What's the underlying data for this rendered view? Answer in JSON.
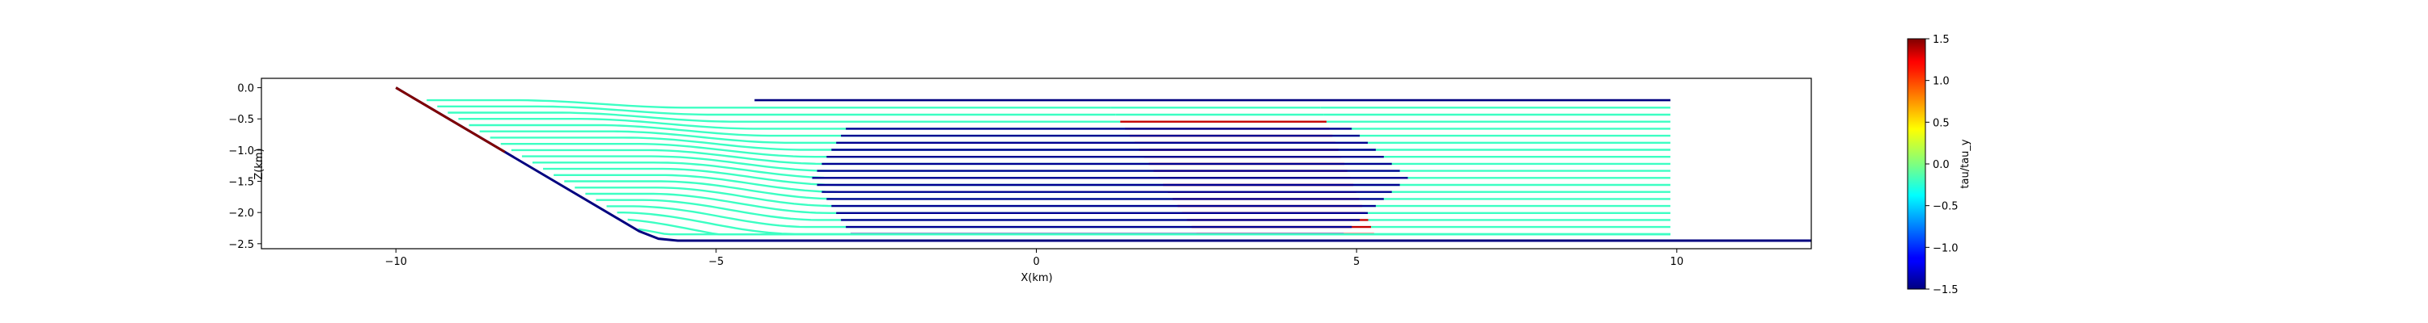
{
  "chart_data": {
    "type": "line",
    "xlabel": "X(km)",
    "ylabel": "Z(km)",
    "xlim": [
      -12.1,
      12.1
    ],
    "ylim": [
      -2.58,
      0.15
    ],
    "xticks": [
      -10,
      -5,
      0,
      5,
      10
    ],
    "xtick_labels": [
      "−10",
      "−5",
      "0",
      "5",
      "10"
    ],
    "yticks": [
      0.0,
      -0.5,
      -1.0,
      -1.5,
      -2.0,
      -2.5
    ],
    "ytick_labels": [
      "0.0",
      "−0.5",
      "−1.0",
      "−1.5",
      "−2.0",
      "−2.5"
    ],
    "grid": false,
    "colormap": "jet",
    "colorbar": {
      "label": "tau/tau_y",
      "vmin": -1.5,
      "vmax": 1.5,
      "ticks": [
        1.5,
        1.0,
        0.5,
        0.0,
        -0.5,
        -1.0,
        -1.5
      ],
      "tick_labels": [
        "1.5",
        "1.0",
        "0.5",
        "0.0",
        "−0.5",
        "−1.0",
        "−1.5"
      ]
    },
    "boundary": {
      "color": "#00007f",
      "points": [
        [
          -10,
          0.0
        ],
        [
          -6.2,
          -2.3
        ],
        [
          -5.9,
          -2.42
        ],
        [
          -5.6,
          -2.45
        ],
        [
          -4.0,
          -2.45
        ],
        [
          12.1,
          -2.45
        ]
      ],
      "upper_segment_color": "#7f0000",
      "upper_segment_until_x": -8.3
    },
    "top_surface": {
      "x_start": -4.4,
      "x_end": 9.9,
      "z": -0.2,
      "value": -1.5
    },
    "streamlines": {
      "x_start": -11.0,
      "x_end": 9.9,
      "z_levels": [
        -0.2,
        -0.3,
        -0.4,
        -0.5,
        -0.6,
        -0.7,
        -0.8,
        -0.9,
        -1.0,
        -1.1,
        -1.2,
        -1.3,
        -1.4,
        -1.5,
        -1.6,
        -1.7,
        -1.8,
        -1.9,
        -2.0,
        -2.1,
        -2.2
      ],
      "background_value": -0.2,
      "yielded_front_value": 1.3,
      "plug_value": -1.45
    }
  }
}
